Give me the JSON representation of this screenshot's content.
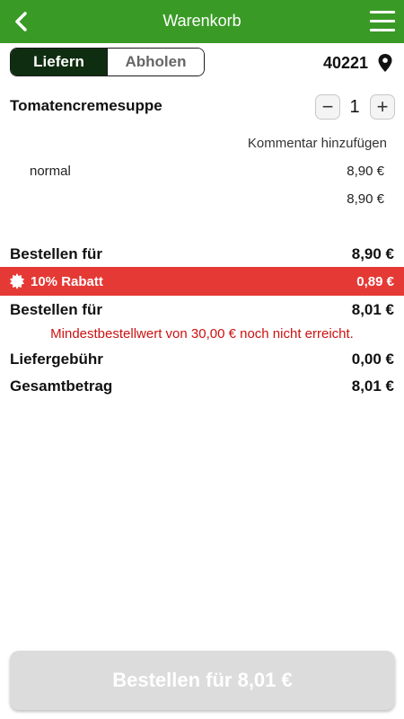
{
  "header": {
    "title": "Warenkorb"
  },
  "mode_switch": {
    "deliver_label": "Liefern",
    "pickup_label": "Abholen",
    "active": "Liefern"
  },
  "location": {
    "postal_code": "40221"
  },
  "cart_item": {
    "name": "Tomatencremesuppe",
    "quantity": "1",
    "decrease_symbol": "−",
    "increase_symbol": "+",
    "comment_link": "Kommentar hinzufügen",
    "variant": "normal",
    "variant_price": "8,90 €",
    "item_total": "8,90 €"
  },
  "summary": {
    "subtotal_label": "Bestellen für",
    "subtotal_value": "8,90 €",
    "discount_label": "10% Rabatt",
    "discount_value": "0,89 €",
    "discounted_label": "Bestellen für",
    "discounted_value": "8,01 €",
    "min_order_warning": "Mindestbestellwert von 30,00 € noch nicht erreicht.",
    "delivery_fee_label": "Liefergebühr",
    "delivery_fee_value": "0,00 €",
    "total_label": "Gesamtbetrag",
    "total_value": "8,01 €"
  },
  "checkout": {
    "button_label": "Bestellen für 8,01 €",
    "enabled": false
  },
  "colors": {
    "header_bg": "#3a9a26",
    "active_tab_bg": "#0f2d10",
    "discount_bg": "#e53935",
    "warning_text": "#cc1111",
    "disabled_button_bg": "#dcdcdc"
  },
  "icons": {
    "back": "chevron-left-icon",
    "menu": "hamburger-menu-icon",
    "location": "map-pin-icon",
    "discount": "starburst-badge-icon"
  }
}
